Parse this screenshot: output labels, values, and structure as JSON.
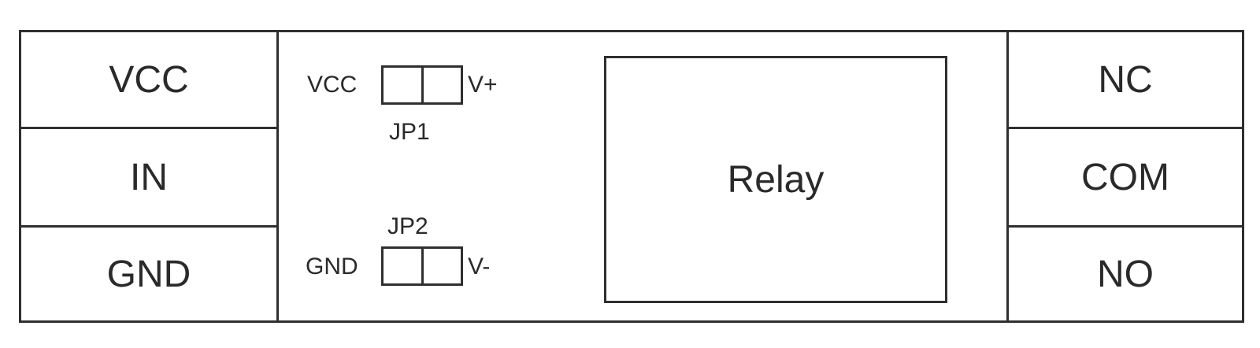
{
  "input_terminals": [
    "VCC",
    "IN",
    "GND"
  ],
  "output_terminals": [
    "NC",
    "COM",
    "NO"
  ],
  "jumpers": {
    "jp1": {
      "name": "JP1",
      "left_label": "VCC",
      "right_label": "V+"
    },
    "jp2": {
      "name": "JP2",
      "left_label": "GND",
      "right_label": "V-"
    }
  },
  "relay_label": "Relay"
}
